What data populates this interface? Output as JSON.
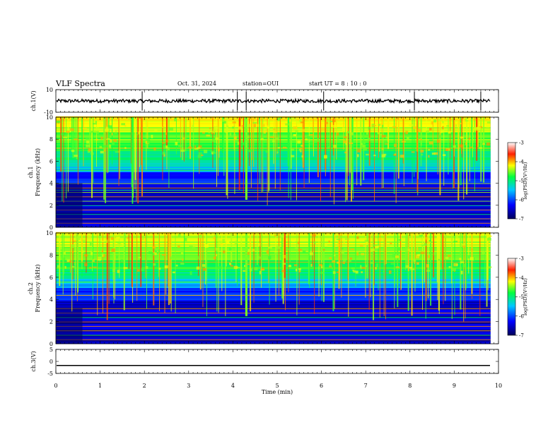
{
  "header": {
    "title": "VLF Spectra",
    "date": "Oct. 31, 2024",
    "station": "station=OUI",
    "start": "start UT = 8 : 10 : 0"
  },
  "chart_data": [
    {
      "type": "line",
      "ylabel": "ch.1(V)",
      "ylim": [
        -10,
        10
      ],
      "y_ticks": [
        "10",
        "-10"
      ],
      "baseline": 0,
      "noise_amplitude": 1.5,
      "spikes_x": [
        1.95,
        4.1,
        4.3,
        6.05,
        8.1,
        9.6
      ]
    },
    {
      "type": "heatmap",
      "ylabel_line1": "ch.1",
      "ylabel_line2": "Frequency (kHz)",
      "ylim": [
        0,
        10
      ],
      "y_ticks": [
        "0",
        "2",
        "4",
        "6",
        "8",
        "10"
      ],
      "colorbar": {
        "label": "log(PSD)(V²/Hz)",
        "range": [
          -7,
          -3
        ],
        "ticks": [
          "-3",
          "-4",
          "-5",
          "-6",
          "-7"
        ]
      }
    },
    {
      "type": "heatmap",
      "ylabel_line1": "ch.2",
      "ylabel_line2": "Frequency (kHz)",
      "ylim": [
        0,
        10
      ],
      "y_ticks": [
        "0",
        "2",
        "4",
        "6",
        "8",
        "10"
      ],
      "colorbar": {
        "label": "log(PSD)(V²/Hz)",
        "range": [
          -7,
          -3
        ],
        "ticks": [
          "-3",
          "-4",
          "-5",
          "-6",
          "-7"
        ]
      }
    },
    {
      "type": "line",
      "ylabel": "ch.3(V)",
      "ylim": [
        -5,
        5
      ],
      "y_ticks": [
        "5",
        "0",
        "-5"
      ],
      "baseline": -1.7
    }
  ],
  "x_axis": {
    "label": "Time (min)",
    "range": [
      0,
      10
    ],
    "data_end": 9.82,
    "ticks": [
      "0",
      "1",
      "2",
      "3",
      "4",
      "5",
      "6",
      "7",
      "8",
      "9",
      "10"
    ]
  }
}
